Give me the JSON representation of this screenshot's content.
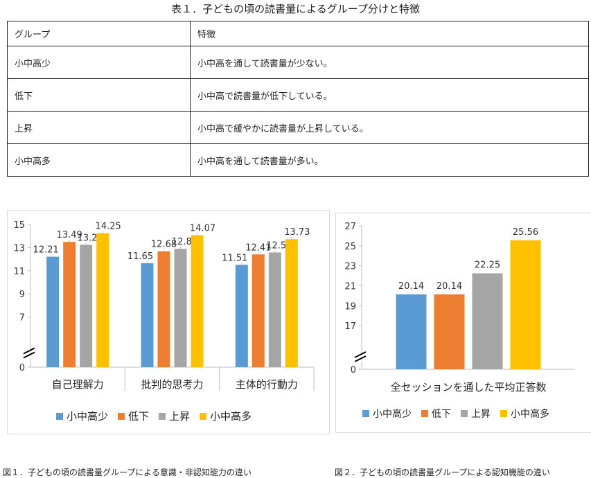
{
  "table": {
    "title": "表１．子どもの頃の読書量によるグループ分けと特徴",
    "headers": [
      "グループ",
      "特徴"
    ],
    "rows": [
      {
        "group": "小中高少",
        "feature": "小中高を通して読書量が少ない。"
      },
      {
        "group": "低下",
        "feature": "小中高で読書量が低下している。"
      },
      {
        "group": "上昇",
        "feature": "小中高で緩やかに読書量が上昇している。"
      },
      {
        "group": "小中高多",
        "feature": "小中高を通して読書量が多い。"
      }
    ]
  },
  "series_colors": [
    "#5b9bd5",
    "#ed7d31",
    "#a5a5a5",
    "#ffc000"
  ],
  "chart_data": [
    {
      "type": "bar",
      "title": "",
      "caption": "図１．子どもの頃の読書量グループによる意識・非認知能力の違い",
      "categories": [
        "自己理解力",
        "批判的思考力",
        "主体的行動力"
      ],
      "series": [
        {
          "name": "小中高少",
          "values": [
            12.21,
            11.65,
            11.51
          ]
        },
        {
          "name": "低下",
          "values": [
            13.49,
            12.68,
            12.41
          ]
        },
        {
          "name": "上昇",
          "values": [
            13.24,
            12.89,
            12.58
          ]
        },
        {
          "name": "小中高多",
          "values": [
            14.25,
            14.07,
            13.73
          ]
        }
      ],
      "yticks": [
        "0",
        "7",
        "9",
        "11",
        "13",
        "15"
      ],
      "ylim": [
        5,
        15
      ],
      "axis_break": true,
      "legend": "bottom",
      "grid": false
    },
    {
      "type": "bar",
      "title": "",
      "caption": "図２．子どもの頃の読書量グループによる認知機能の違い",
      "categories": [
        "全セッションを通した平均正答数"
      ],
      "series": [
        {
          "name": "小中高少",
          "values": [
            20.14
          ]
        },
        {
          "name": "低下",
          "values": [
            20.14
          ]
        },
        {
          "name": "上昇",
          "values": [
            22.25
          ]
        },
        {
          "name": "小中高多",
          "values": [
            25.56
          ]
        }
      ],
      "yticks": [
        "0",
        "17",
        "19",
        "21",
        "23",
        "25",
        "27"
      ],
      "ylim": [
        15,
        27
      ],
      "axis_break": true,
      "legend": "bottom",
      "grid": false
    }
  ]
}
